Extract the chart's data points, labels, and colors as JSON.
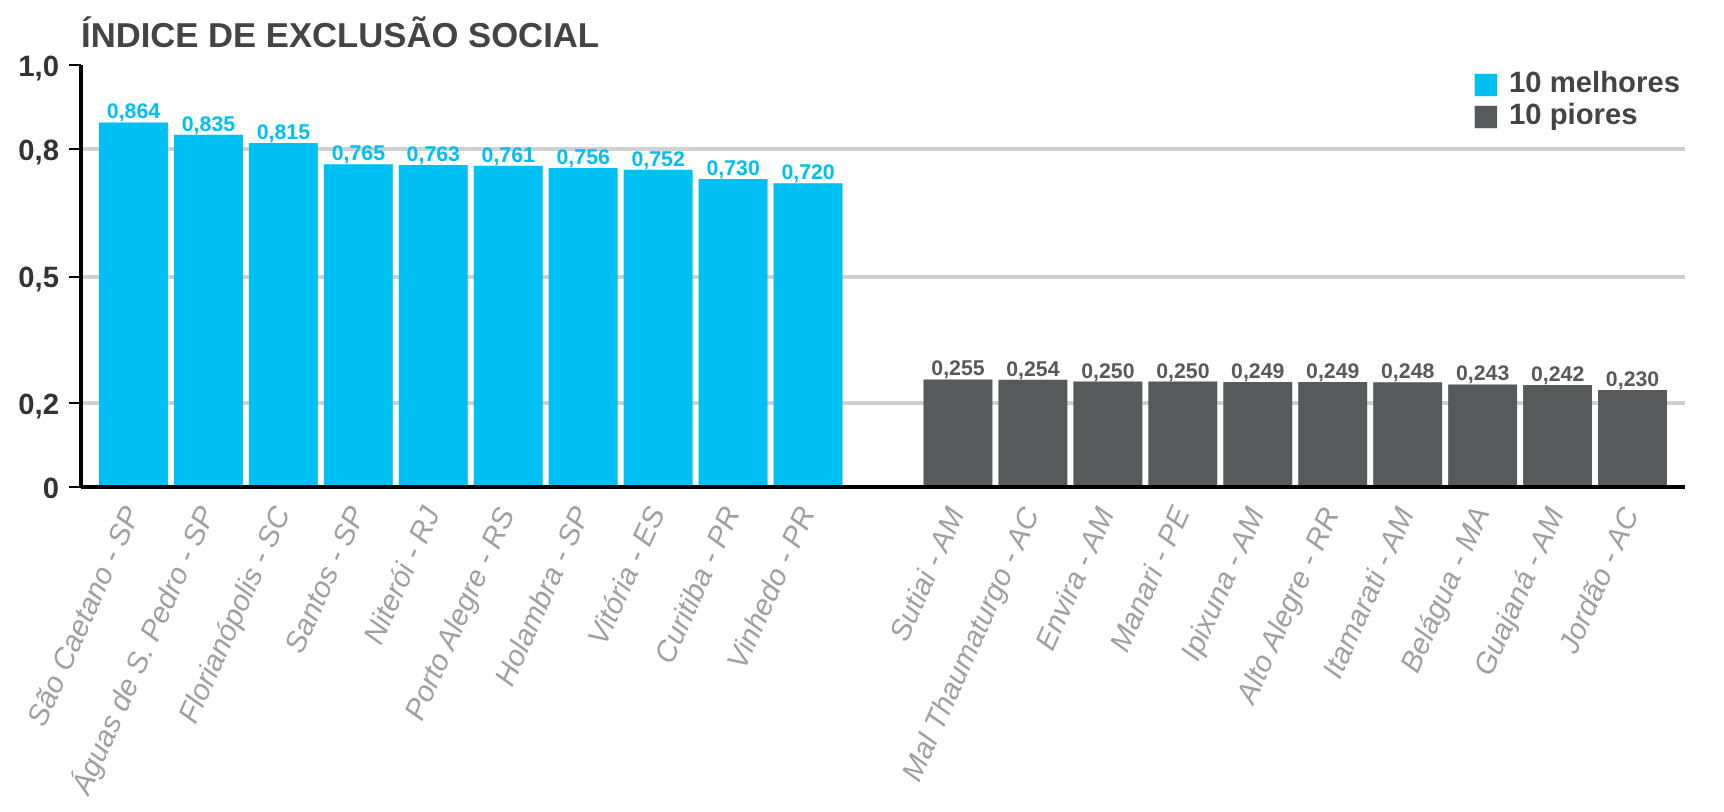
{
  "chart_data": {
    "type": "bar",
    "title": "ÍNDICE DE EXCLUSÃO SOCIAL",
    "categories": [
      "São Caetano - SP",
      "Águas de S. Pedro - SP",
      "Florianópolis - SC",
      "Santos - SP",
      "Niterói - RJ",
      "Porto Alegre - RS",
      "Holambra - SP",
      "Vitória - ES",
      "Curitiba - PR",
      "Vinhedo - PR",
      null,
      "Sutiai - AM",
      "Mal Thaumaturgo - AC",
      "Envira - AM",
      "Manari - PE",
      "Ipixuna - AM",
      "Alto Alegre - RR",
      "Itamarati - AM",
      "Belágua - MA",
      "Guajaná - AM",
      "Jordão - AC"
    ],
    "series": [
      {
        "name": "10 melhores",
        "color": "#00bff3",
        "values": [
          0.864,
          0.835,
          0.815,
          0.765,
          0.763,
          0.761,
          0.756,
          0.752,
          0.73,
          0.72,
          null,
          null,
          null,
          null,
          null,
          null,
          null,
          null,
          null,
          null,
          null
        ],
        "value_labels": [
          "0,864",
          "0,835",
          "0,815",
          "0,765",
          "0,763",
          "0,761",
          "0,756",
          "0,752",
          "0,730",
          "0,720",
          null,
          null,
          null,
          null,
          null,
          null,
          null,
          null,
          null,
          null,
          null
        ]
      },
      {
        "name": "10 piores",
        "color": "#58595b",
        "values": [
          null,
          null,
          null,
          null,
          null,
          null,
          null,
          null,
          null,
          null,
          null,
          0.255,
          0.254,
          0.25,
          0.25,
          0.249,
          0.249,
          0.248,
          0.243,
          0.242,
          0.23
        ],
        "value_labels": [
          null,
          null,
          null,
          null,
          null,
          null,
          null,
          null,
          null,
          null,
          null,
          "0,255",
          "0,254",
          "0,250",
          "0,250",
          "0,249",
          "0,249",
          "0,248",
          "0,243",
          "0,242",
          "0,230"
        ]
      }
    ],
    "ylim": [
      0,
      1.0
    ],
    "yticks": [
      {
        "value": 0,
        "label": "0"
      },
      {
        "value": 0.2,
        "label": "0,2"
      },
      {
        "value": 0.5,
        "label": "0,5"
      },
      {
        "value": 0.8,
        "label": "0,8"
      },
      {
        "value": 1.0,
        "label": "1,0"
      }
    ],
    "grid": "y",
    "legend": "top right"
  }
}
